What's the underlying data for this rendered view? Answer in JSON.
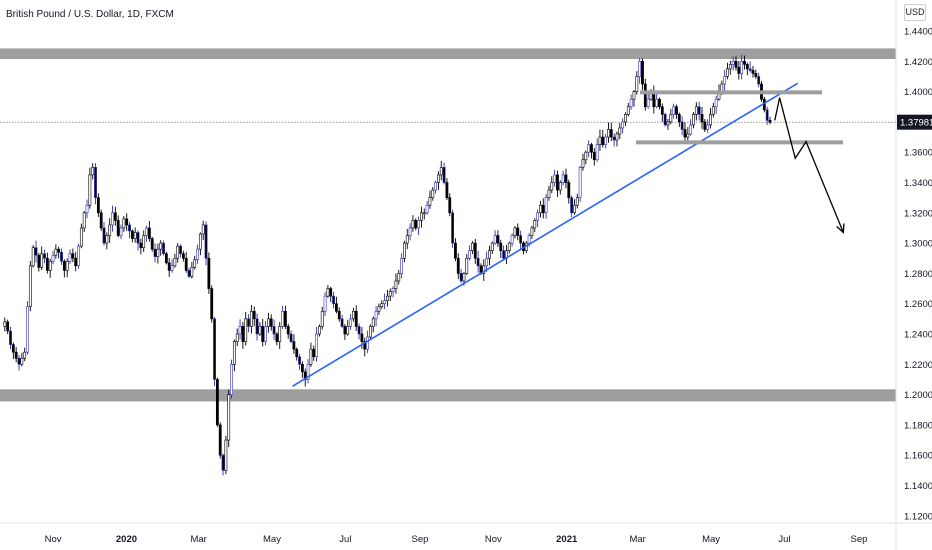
{
  "header": {
    "symbol_title": "British Pound / U.S. Dollar, 1D, FXCM",
    "currency": "USD"
  },
  "price_label": "1.37981",
  "colors": {
    "up_candle": "#ffffff",
    "candle": "#000000",
    "candle_alt": "#3030c0",
    "zone": "#9e9e9e",
    "trendline": "#2962ff",
    "projection": "#000000"
  },
  "chart_data": {
    "type": "candlestick",
    "title": "British Pound / U.S. Dollar, 1D, FXCM",
    "ylim": [
      1.11,
      1.45
    ],
    "y_ticks": [
      "1.44000",
      "1.42000",
      "1.40000",
      "1.38000",
      "1.36000",
      "1.34000",
      "1.32000",
      "1.30000",
      "1.28000",
      "1.26000",
      "1.24000",
      "1.22000",
      "1.20000",
      "1.18000",
      "1.16000",
      "1.14000",
      "1.12000"
    ],
    "x_ticks": [
      "Nov",
      "2020",
      "Mar",
      "May",
      "Jul",
      "Sep",
      "Nov",
      "2021",
      "Mar",
      "May",
      "Jul",
      "Sep"
    ],
    "last_price": 1.37981,
    "price_path": [
      1.245,
      1.248,
      1.242,
      1.233,
      1.228,
      1.224,
      1.22,
      1.224,
      1.228,
      1.258,
      1.285,
      1.297,
      1.292,
      1.284,
      1.293,
      1.29,
      1.282,
      1.288,
      1.292,
      1.296,
      1.294,
      1.288,
      1.282,
      1.288,
      1.293,
      1.29,
      1.285,
      1.298,
      1.31,
      1.32,
      1.325,
      1.345,
      1.35,
      1.33,
      1.32,
      1.31,
      1.3,
      1.305,
      1.312,
      1.32,
      1.315,
      1.305,
      1.31,
      1.316,
      1.312,
      1.308,
      1.303,
      1.307,
      1.3,
      1.297,
      1.305,
      1.31,
      1.303,
      1.296,
      1.291,
      1.296,
      1.3,
      1.293,
      1.287,
      1.282,
      1.285,
      1.29,
      1.298,
      1.293,
      1.29,
      1.282,
      1.278,
      1.284,
      1.289,
      1.296,
      1.306,
      1.312,
      1.29,
      1.27,
      1.25,
      1.21,
      1.18,
      1.16,
      1.15,
      1.17,
      1.2,
      1.22,
      1.235,
      1.24,
      1.245,
      1.235,
      1.25,
      1.245,
      1.255,
      1.25,
      1.24,
      1.245,
      1.235,
      1.245,
      1.25,
      1.245,
      1.24,
      1.235,
      1.245,
      1.255,
      1.245,
      1.24,
      1.235,
      1.23,
      1.225,
      1.22,
      1.215,
      1.21,
      1.22,
      1.23,
      1.225,
      1.24,
      1.245,
      1.255,
      1.265,
      1.27,
      1.265,
      1.26,
      1.255,
      1.25,
      1.245,
      1.24,
      1.245,
      1.25,
      1.255,
      1.245,
      1.24,
      1.235,
      1.23,
      1.238,
      1.245,
      1.25,
      1.255,
      1.258,
      1.26,
      1.262,
      1.265,
      1.268,
      1.27,
      1.275,
      1.28,
      1.29,
      1.3,
      1.305,
      1.31,
      1.315,
      1.31,
      1.315,
      1.32,
      1.32,
      1.325,
      1.33,
      1.335,
      1.34,
      1.345,
      1.35,
      1.34,
      1.33,
      1.32,
      1.3,
      1.29,
      1.28,
      1.275,
      1.28,
      1.29,
      1.295,
      1.3,
      1.29,
      1.285,
      1.28,
      1.285,
      1.29,
      1.295,
      1.3,
      1.305,
      1.3,
      1.295,
      1.29,
      1.295,
      1.3,
      1.305,
      1.31,
      1.305,
      1.3,
      1.295,
      1.3,
      1.305,
      1.31,
      1.315,
      1.32,
      1.325,
      1.32,
      1.33,
      1.335,
      1.34,
      1.345,
      1.335,
      1.34,
      1.345,
      1.34,
      1.33,
      1.32,
      1.325,
      1.33,
      1.35,
      1.355,
      1.36,
      1.365,
      1.36,
      1.355,
      1.365,
      1.37,
      1.365,
      1.37,
      1.375,
      1.37,
      1.368,
      1.372,
      1.376,
      1.38,
      1.385,
      1.39,
      1.395,
      1.4,
      1.41,
      1.42,
      1.405,
      1.39,
      1.395,
      1.4,
      1.39,
      1.395,
      1.39,
      1.385,
      1.378,
      1.38,
      1.385,
      1.39,
      1.385,
      1.38,
      1.375,
      1.37,
      1.372,
      1.378,
      1.385,
      1.39,
      1.385,
      1.38,
      1.375,
      1.378,
      1.385,
      1.39,
      1.395,
      1.4,
      1.405,
      1.41,
      1.415,
      1.418,
      1.42,
      1.416,
      1.412,
      1.42,
      1.418,
      1.415,
      1.414,
      1.412,
      1.41,
      1.405,
      1.395,
      1.388,
      1.381,
      1.37981
    ]
  },
  "annotations": {
    "resistance_zone": [
      1.4215,
      1.4285
    ],
    "support_zone": [
      1.1955,
      1.2035
    ],
    "box_top": 1.3995,
    "box_bottom": 1.3665,
    "trendline": {
      "from": {
        "date": "2020-05-18",
        "price": 1.2055
      },
      "to": {
        "date": "2021-07-12",
        "price": 1.4055
      }
    },
    "projection": [
      {
        "date": "2021-06-23",
        "price": 1.381
      },
      {
        "date": "2021-06-27",
        "price": 1.396
      },
      {
        "date": "2021-07-10",
        "price": 1.356
      },
      {
        "date": "2021-07-19",
        "price": 1.367
      },
      {
        "date": "2021-08-19",
        "price": 1.307
      }
    ]
  }
}
